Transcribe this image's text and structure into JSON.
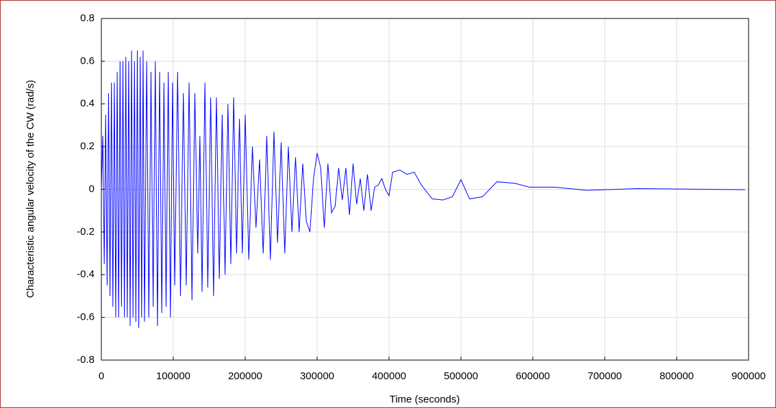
{
  "chart_data": {
    "type": "line",
    "x_label": "Time (seconds)",
    "y_label": "Characteristic angular velocity of the CW (rad/s)",
    "x": [
      0,
      2000,
      4000,
      6000,
      8000,
      10000,
      12000,
      14000,
      16000,
      18000,
      20000,
      22000,
      24000,
      26000,
      28000,
      30000,
      32000,
      34000,
      36000,
      38000,
      40000,
      42000,
      44000,
      46000,
      48000,
      50000,
      52000,
      54000,
      56000,
      58000,
      60000,
      63000,
      66000,
      69000,
      72000,
      75000,
      78000,
      81000,
      84000,
      87000,
      90000,
      93000,
      96000,
      99000,
      102000,
      106000,
      110000,
      114000,
      118000,
      122000,
      126000,
      130000,
      134000,
      137000,
      140000,
      144000,
      148000,
      152000,
      156000,
      160000,
      164000,
      168000,
      172000,
      176000,
      180000,
      184000,
      188000,
      192000,
      196000,
      200000,
      205000,
      210000,
      215000,
      220000,
      225000,
      230000,
      235000,
      240000,
      245000,
      250000,
      255000,
      260000,
      265000,
      270000,
      275000,
      280000,
      285000,
      290000,
      295000,
      300000,
      305000,
      310000,
      315000,
      320000,
      325000,
      330000,
      335000,
      340000,
      345000,
      350000,
      355000,
      360000,
      365000,
      370000,
      375000,
      380000,
      385000,
      390000,
      395000,
      400000,
      405000,
      415000,
      425000,
      435000,
      445000,
      460000,
      475000,
      488000,
      500000,
      512000,
      530000,
      550000,
      575000,
      595000,
      630000,
      675000,
      745000,
      895000
    ],
    "series": [
      {
        "name": "angular velocity",
        "color": "#0000ff",
        "values": [
          0,
          0.25,
          -0.35,
          0.35,
          -0.45,
          0.45,
          -0.5,
          0.5,
          -0.55,
          0.5,
          -0.6,
          0.55,
          -0.6,
          0.6,
          -0.55,
          0.6,
          -0.6,
          0.62,
          -0.6,
          0.6,
          -0.64,
          0.65,
          -0.6,
          0.6,
          -0.62,
          0.65,
          -0.65,
          0.62,
          -0.6,
          0.65,
          -0.62,
          0.6,
          -0.6,
          0.55,
          -0.55,
          0.6,
          -0.64,
          0.55,
          -0.58,
          0.5,
          -0.55,
          0.55,
          -0.6,
          0.5,
          -0.45,
          0.55,
          -0.5,
          0.45,
          -0.45,
          0.5,
          -0.52,
          0.45,
          -0.3,
          0.25,
          -0.48,
          0.5,
          -0.46,
          0.43,
          -0.5,
          0.43,
          -0.42,
          0.35,
          -0.4,
          0.4,
          -0.35,
          0.43,
          -0.3,
          0.33,
          -0.3,
          0.35,
          -0.33,
          0.2,
          -0.18,
          0.14,
          -0.3,
          0.25,
          -0.33,
          0.27,
          -0.25,
          0.22,
          -0.3,
          0.2,
          -0.2,
          0.15,
          -0.2,
          0.12,
          -0.15,
          -0.2,
          0.05,
          0.17,
          0.1,
          -0.18,
          0.12,
          -0.11,
          -0.08,
          0.1,
          -0.05,
          0.1,
          -0.12,
          0.12,
          -0.07,
          0.05,
          -0.1,
          0.07,
          -0.1,
          0.01,
          0.02,
          0.05,
          0,
          -0.03,
          0.08,
          0.09,
          0.07,
          0.08,
          0.02,
          -0.045,
          -0.05,
          -0.035,
          0.045,
          -0.045,
          -0.035,
          0.035,
          0.028,
          0.01,
          0.01,
          -0.005,
          0.003,
          -0.002
        ]
      }
    ],
    "xlim": [
      0,
      900000
    ],
    "xticks": [
      0,
      100000,
      200000,
      300000,
      400000,
      500000,
      600000,
      700000,
      800000,
      900000
    ],
    "ylim": [
      -0.8,
      0.8
    ],
    "yticks": [
      -0.8,
      -0.6,
      -0.4,
      -0.2,
      0,
      0.2,
      0.4,
      0.6,
      0.8
    ],
    "grid": true
  }
}
